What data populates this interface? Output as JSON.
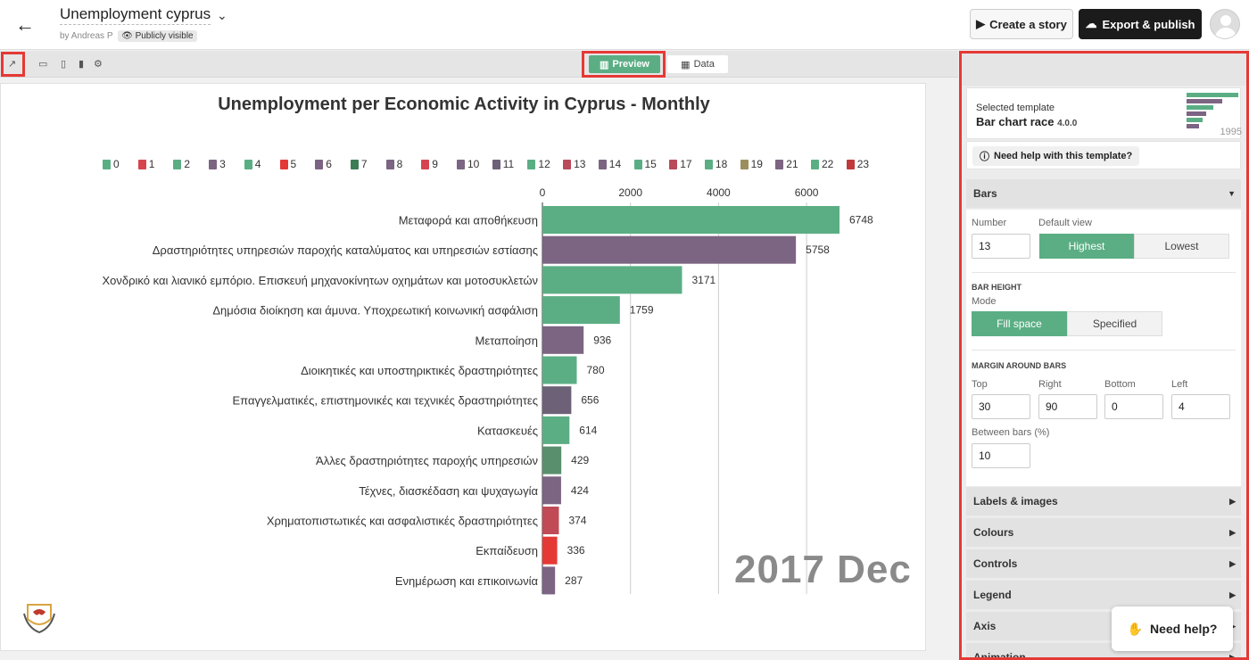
{
  "header": {
    "title": "Unemployment cyprus",
    "byline": "by Andreas P",
    "visibility": "Publicly visible",
    "create_story": "Create a story",
    "export_publish": "Export & publish"
  },
  "tabs": {
    "preview": "Preview",
    "data": "Data"
  },
  "chart_data": {
    "type": "bar",
    "title": "Unemployment per Economic Activity in Cyprus - Monthly",
    "date_label": "2017 Dec",
    "xlim": [
      0,
      6748
    ],
    "xticks": [
      0,
      2000,
      4000,
      6000
    ],
    "legend_position": "top",
    "legend": [
      {
        "label": "0",
        "color": "#5bae84"
      },
      {
        "label": "1",
        "color": "#d6454f"
      },
      {
        "label": "2",
        "color": "#5bae84"
      },
      {
        "label": "3",
        "color": "#7c6483"
      },
      {
        "label": "4",
        "color": "#5bae84"
      },
      {
        "label": "5",
        "color": "#e53935"
      },
      {
        "label": "6",
        "color": "#7c6483"
      },
      {
        "label": "7",
        "color": "#3d7b57"
      },
      {
        "label": "8",
        "color": "#7c6483"
      },
      {
        "label": "9",
        "color": "#d6454f"
      },
      {
        "label": "10",
        "color": "#7c6483"
      },
      {
        "label": "11",
        "color": "#6d6178"
      },
      {
        "label": "12",
        "color": "#5bae84"
      },
      {
        "label": "13",
        "color": "#b84a5a"
      },
      {
        "label": "14",
        "color": "#7c6483"
      },
      {
        "label": "15",
        "color": "#5bae84"
      },
      {
        "label": "17",
        "color": "#b84a5a"
      },
      {
        "label": "18",
        "color": "#5bae84"
      },
      {
        "label": "19",
        "color": "#9c8f5e"
      },
      {
        "label": "21",
        "color": "#7c6483"
      },
      {
        "label": "22",
        "color": "#5bae84"
      },
      {
        "label": "23",
        "color": "#c0393b"
      }
    ],
    "bars": [
      {
        "label": "Μεταφορά και αποθήκευση",
        "value": 6748,
        "color": "#5bae84"
      },
      {
        "label": "Δραστηριότητες υπηρεσιών παροχής καταλύματος και υπηρεσιών εστίασης",
        "value": 5758,
        "color": "#7c6483"
      },
      {
        "label": "Χονδρικό και λιανικό εμπόριο. Επισκευή μηχανοκίνητων οχημάτων και μοτοσυκλετών",
        "value": 3171,
        "color": "#5bae84"
      },
      {
        "label": "Δημόσια διοίκηση και άμυνα. Υποχρεωτική κοινωνική ασφάλιση",
        "value": 1759,
        "color": "#5bae84"
      },
      {
        "label": "Μεταποίηση",
        "value": 936,
        "color": "#7c6483"
      },
      {
        "label": "Διοικητικές και υποστηρικτικές δραστηριότητες",
        "value": 780,
        "color": "#5bae84"
      },
      {
        "label": "Επαγγελματικές, επιστημονικές και τεχνικές δραστηριότητες",
        "value": 656,
        "color": "#6d6178"
      },
      {
        "label": "Κατασκευές",
        "value": 614,
        "color": "#5bae84"
      },
      {
        "label": "Άλλες δραστηριότητες παροχής υπηρεσιών",
        "value": 429,
        "color": "#5a8f6e"
      },
      {
        "label": "Τέχνες, διασκέδαση και ψυχαγωγία",
        "value": 424,
        "color": "#7c6483"
      },
      {
        "label": "Χρηματοπιστωτικές και ασφαλιστικές δραστηριότητες",
        "value": 374,
        "color": "#c04a55"
      },
      {
        "label": "Εκπαίδευση",
        "value": 336,
        "color": "#e53935"
      },
      {
        "label": "Ενημέρωση και επικοινωνία",
        "value": 287,
        "color": "#7c6483"
      }
    ]
  },
  "panel": {
    "selected_template_caption": "Selected template",
    "template_name": "Bar chart race",
    "template_version": "4.0.0",
    "thumb_year": "1995",
    "help_template": "Need help with this template?",
    "bars_section": {
      "title": "Bars",
      "number_label": "Number",
      "number_value": "13",
      "default_view_label": "Default view",
      "highest": "Highest",
      "lowest": "Lowest",
      "bar_height_heading": "BAR HEIGHT",
      "mode_label": "Mode",
      "fill_space": "Fill space",
      "specified": "Specified",
      "margin_heading": "MARGIN AROUND BARS",
      "top_label": "Top",
      "top_value": "30",
      "right_label": "Right",
      "right_value": "90",
      "bottom_label": "Bottom",
      "bottom_value": "0",
      "left_label": "Left",
      "left_value": "4",
      "between_label": "Between bars (%)",
      "between_value": "10"
    },
    "sections": [
      "Labels & images",
      "Colours",
      "Controls",
      "Legend",
      "Axis",
      "Animation"
    ]
  },
  "need_help": "Need help?"
}
